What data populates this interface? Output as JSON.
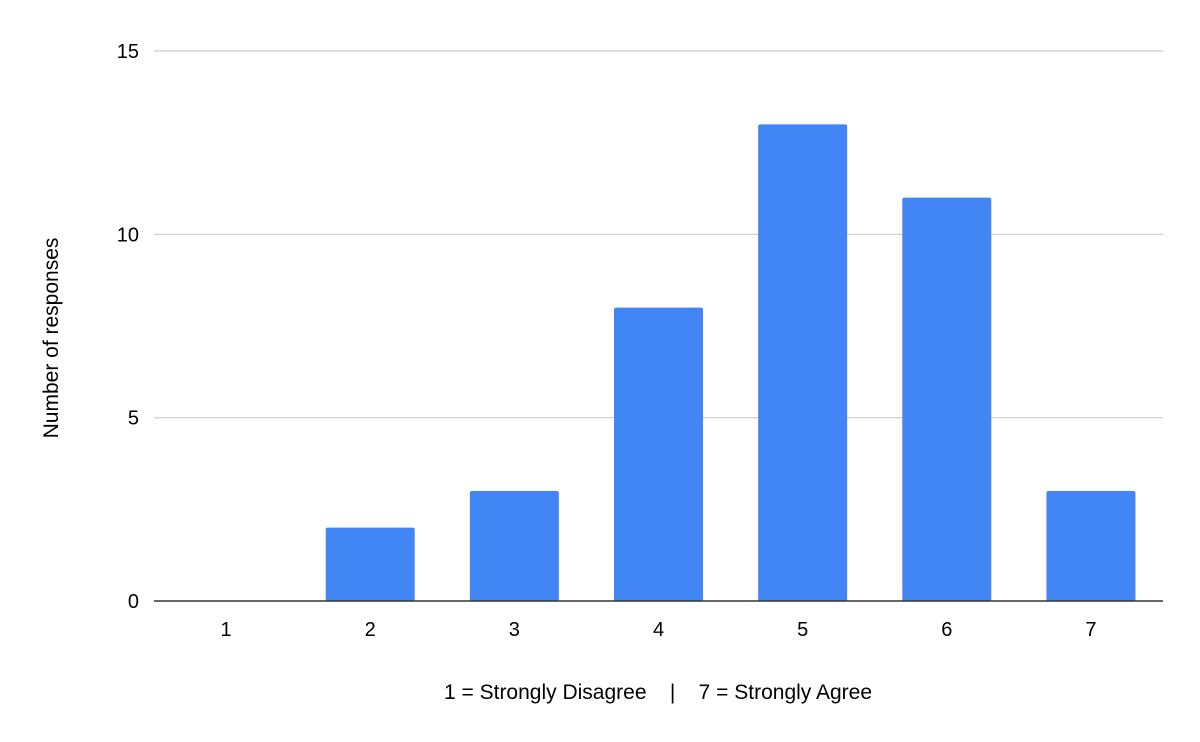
{
  "chart_data": {
    "type": "bar",
    "title": "",
    "xlabel": "1 = Strongly Disagree    |    7 = Strongly Agree",
    "ylabel": "Number of responses",
    "categories": [
      "1",
      "2",
      "3",
      "4",
      "5",
      "6",
      "7"
    ],
    "values": [
      0,
      2,
      3,
      8,
      13,
      11,
      3
    ],
    "ylim": [
      0,
      15
    ],
    "yticks": [
      0,
      5,
      10,
      15
    ],
    "grid": true,
    "legend": "none",
    "colors": {
      "bar": "#4285f4",
      "grid": "#cccccc",
      "axis": "#333333"
    }
  }
}
